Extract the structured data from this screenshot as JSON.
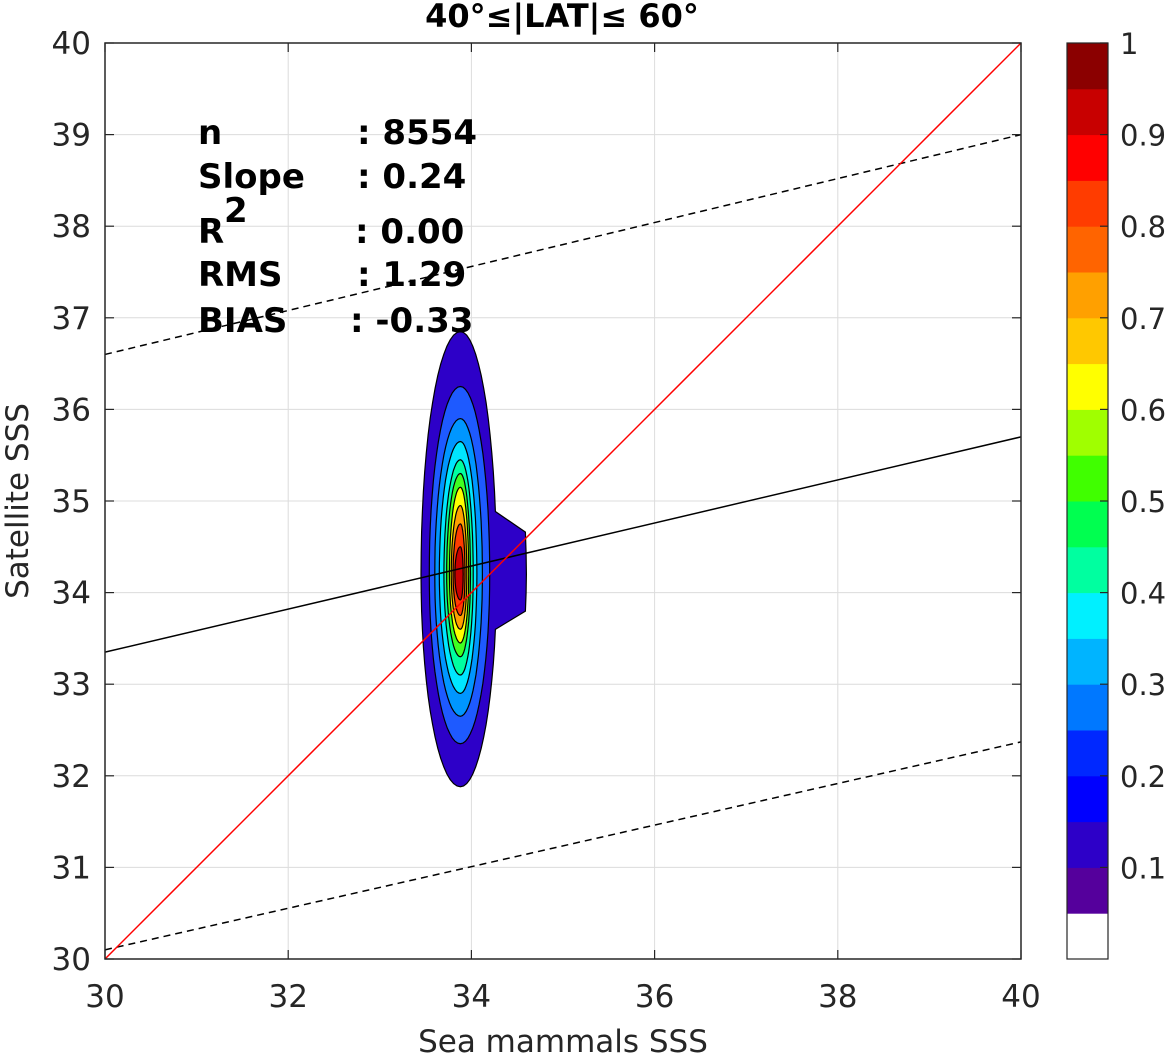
{
  "chart_data": {
    "type": "contour",
    "title": "40°≤|LAT|≤ 60°",
    "xlabel": "Sea mammals  SSS",
    "ylabel": "Satellite SSS",
    "xlim": [
      30,
      40
    ],
    "ylim": [
      30,
      40
    ],
    "xticks": [
      "30",
      "32",
      "34",
      "36",
      "38",
      "40"
    ],
    "yticks": [
      "30",
      "31",
      "32",
      "33",
      "34",
      "35",
      "36",
      "37",
      "38",
      "39",
      "40"
    ],
    "grid": true,
    "stats": {
      "n_label": "n",
      "n_value": ": 8554",
      "slope_label": "Slope",
      "slope_value": ": 0.24",
      "r2_label": "R",
      "r2_sup": "2",
      "r2_value": ": 0.00",
      "rms_label": "RMS",
      "rms_value": ": 1.29",
      "bias_label": "BIAS",
      "bias_value": ": -0.33"
    },
    "lines": {
      "identity": {
        "color": "#ff0000",
        "x": [
          30,
          40
        ],
        "y": [
          30,
          40
        ]
      },
      "fit": {
        "color": "#000000",
        "x": [
          30,
          40
        ],
        "y": [
          33.35,
          35.7
        ]
      },
      "fit_plus_2rms": {
        "color": "#000000",
        "style": "dashed",
        "x": [
          30,
          40
        ],
        "y": [
          36.6,
          39.0
        ]
      },
      "fit_minus_2rms": {
        "color": "#000000",
        "style": "dashed",
        "x": [
          30,
          40
        ],
        "y": [
          30.1,
          32.37
        ]
      }
    },
    "density_center": {
      "x": 33.88,
      "y": 34.2
    },
    "contour_levels": [
      0.05,
      0.15,
      0.25,
      0.35,
      0.45,
      0.55,
      0.65,
      0.75,
      0.85,
      0.95
    ],
    "contours": [
      {
        "level": 0.05,
        "color": "#2d00c8",
        "x_left": 33.45,
        "x_right": 34.6,
        "y_bottom": 31.88,
        "y_top": 36.85
      },
      {
        "level": 0.15,
        "color": "#1e5aff",
        "x_left": 33.54,
        "x_right": 34.2,
        "y_bottom": 32.35,
        "y_top": 36.25
      },
      {
        "level": 0.25,
        "color": "#0096ff",
        "x_left": 33.6,
        "x_right": 34.12,
        "y_bottom": 32.65,
        "y_top": 35.9
      },
      {
        "level": 0.35,
        "color": "#00e6ff",
        "x_left": 33.65,
        "x_right": 34.06,
        "y_bottom": 32.9,
        "y_top": 35.65
      },
      {
        "level": 0.45,
        "color": "#00ffa0",
        "x_left": 33.7,
        "x_right": 34.02,
        "y_bottom": 33.1,
        "y_top": 35.45
      },
      {
        "level": 0.55,
        "color": "#40ff20",
        "x_left": 33.73,
        "x_right": 33.99,
        "y_bottom": 33.3,
        "y_top": 35.3
      },
      {
        "level": 0.65,
        "color": "#ffff00",
        "x_left": 33.76,
        "x_right": 33.97,
        "y_bottom": 33.45,
        "y_top": 35.15
      },
      {
        "level": 0.75,
        "color": "#ffa000",
        "x_left": 33.78,
        "x_right": 33.95,
        "y_bottom": 33.6,
        "y_top": 34.95
      },
      {
        "level": 0.85,
        "color": "#ff3c00",
        "x_left": 33.8,
        "x_right": 33.93,
        "y_bottom": 33.75,
        "y_top": 34.75
      },
      {
        "level": 0.95,
        "color": "#c80000",
        "x_left": 33.82,
        "x_right": 33.91,
        "y_bottom": 33.92,
        "y_top": 34.5
      }
    ],
    "colorbar": {
      "ticks": [
        "0.1",
        "0.2",
        "0.3",
        "0.4",
        "0.5",
        "0.6",
        "0.7",
        "0.8",
        "0.9",
        "1"
      ],
      "tick_values": [
        0.1,
        0.2,
        0.3,
        0.4,
        0.5,
        0.6,
        0.7,
        0.8,
        0.9,
        1.0
      ],
      "colors": [
        "#ffffff",
        "#55009c",
        "#2d00c8",
        "#0000ff",
        "#0028ff",
        "#0078ff",
        "#00b4ff",
        "#00f0ff",
        "#00ffa0",
        "#00ff50",
        "#40ff00",
        "#a0ff00",
        "#ffff00",
        "#ffc800",
        "#ffa000",
        "#ff6400",
        "#ff3c00",
        "#ff0000",
        "#c80000",
        "#8b0000"
      ]
    }
  }
}
